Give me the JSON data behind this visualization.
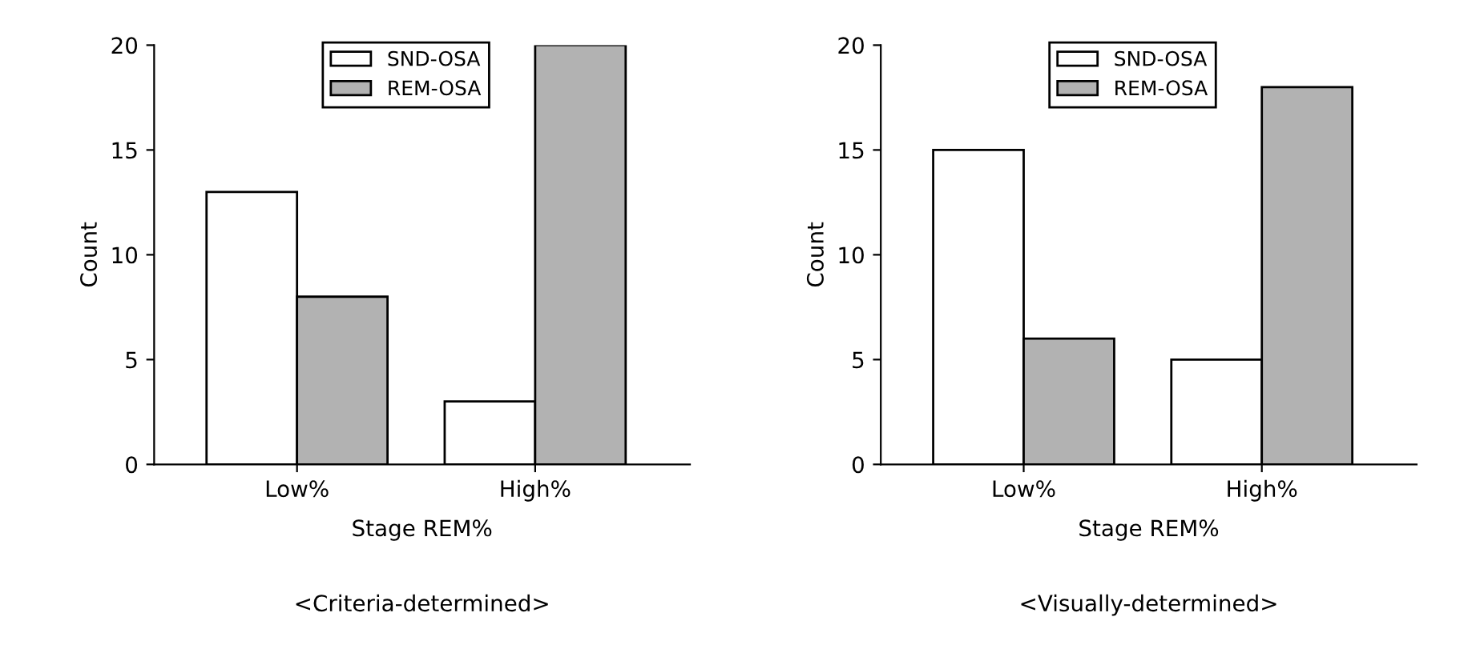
{
  "chart_data": [
    {
      "type": "bar",
      "xlabel": "Stage REM%",
      "ylabel": "Count",
      "categories": [
        "Low%",
        "High%"
      ],
      "series": [
        {
          "name": "SND-OSA",
          "color": "#ffffff",
          "values": [
            13,
            3
          ]
        },
        {
          "name": "REM-OSA",
          "color": "#b2b2b2",
          "values": [
            8,
            20
          ]
        }
      ],
      "ylim": [
        0,
        20
      ],
      "yticks": [
        0,
        5,
        10,
        15,
        20
      ],
      "grid": false,
      "legend": "top",
      "annotations": [
        "<Criteria-determined>"
      ]
    },
    {
      "type": "bar",
      "xlabel": "Stage REM%",
      "ylabel": "Count",
      "categories": [
        "Low%",
        "High%"
      ],
      "series": [
        {
          "name": "SND-OSA",
          "color": "#ffffff",
          "values": [
            15,
            5
          ]
        },
        {
          "name": "REM-OSA",
          "color": "#b2b2b2",
          "values": [
            6,
            18
          ]
        }
      ],
      "ylim": [
        0,
        20
      ],
      "yticks": [
        0,
        5,
        10,
        15,
        20
      ],
      "grid": false,
      "legend": "top",
      "annotations": [
        "<Visually-determined>"
      ]
    }
  ]
}
